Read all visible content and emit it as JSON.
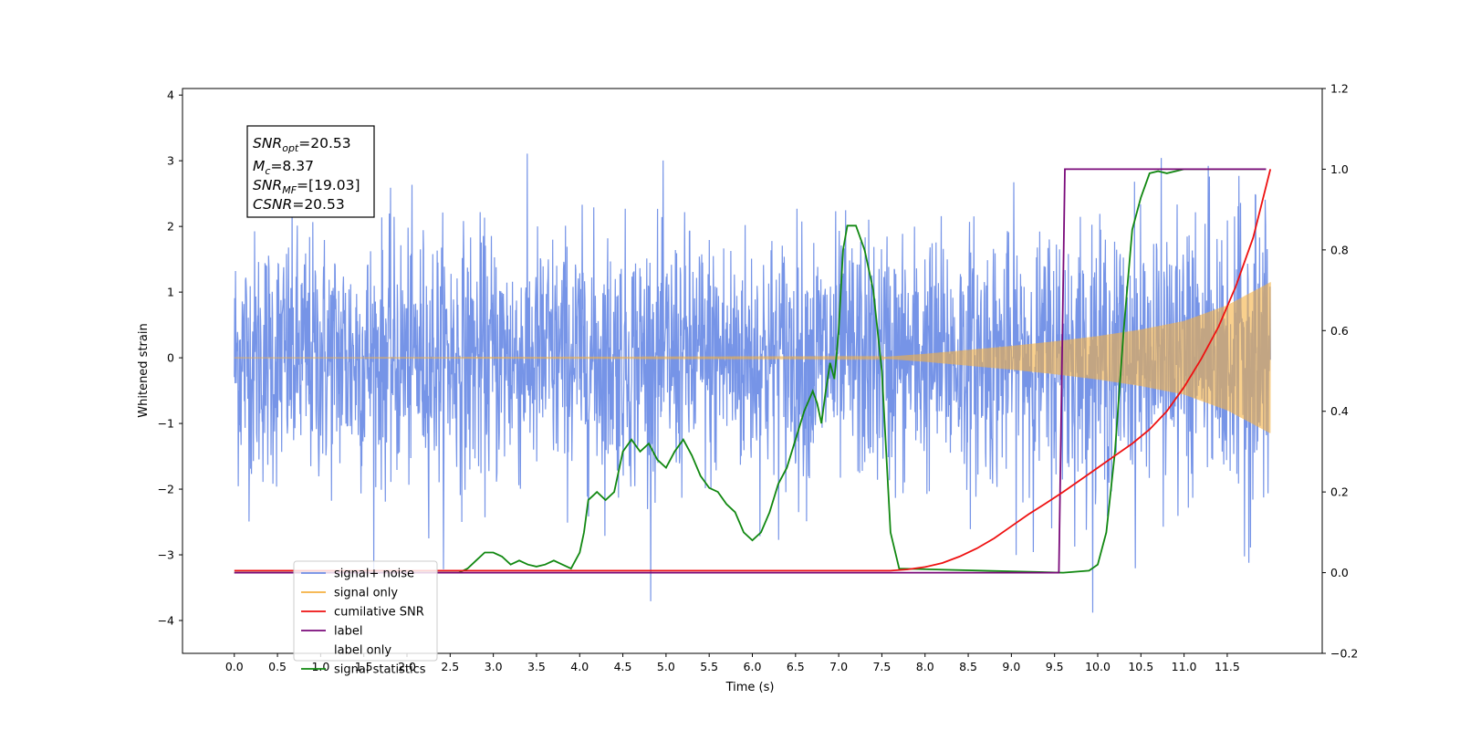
{
  "chart_data": {
    "type": "line",
    "xlabel": "Time (s)",
    "ylabel": "Whitened strain",
    "xlim": [
      -0.6,
      12.6
    ],
    "ylim": [
      -4.5,
      4.1
    ],
    "y2lim": [
      -0.2,
      1.2
    ],
    "x_ticks": [
      "0.0",
      "0.5",
      "1.0",
      "1.5",
      "2.0",
      "2.5",
      "3.0",
      "3.5",
      "4.0",
      "4.5",
      "5.0",
      "5.5",
      "6.0",
      "6.5",
      "7.0",
      "7.5",
      "8.0",
      "8.5",
      "9.0",
      "9.5",
      "10.0",
      "10.5",
      "11.0",
      "11.5"
    ],
    "y_ticks": [
      "4",
      "3",
      "2",
      "1",
      "0",
      "−1",
      "−2",
      "−3",
      "−4"
    ],
    "y2_ticks": [
      "1.2",
      "1.0",
      "0.8",
      "0.6",
      "0.4",
      "0.2",
      "0.0",
      "−0.2"
    ],
    "annotation": {
      "snr_opt": {
        "sym": "SNR",
        "sub": "opt",
        "value": "=20.53"
      },
      "mc": {
        "sym": "M",
        "sub": "c",
        "value": "=8.37"
      },
      "snr_mf": {
        "sym": "SNR",
        "sub": "MF",
        "value": "=[19.03]"
      },
      "csnr": {
        "sym": "CSNR",
        "sub": "",
        "value": "=20.53"
      }
    },
    "series": [
      {
        "name": "signal+ noise",
        "color": "#6f8ee6",
        "axis": "left",
        "description_values": {
          "x_range": [
            0.0,
            12.0
          ],
          "envelope_abs_max": 3.7
        }
      },
      {
        "name": "signal only",
        "color": "#f5b041",
        "axis": "left",
        "envelope": [
          [
            0.0,
            0.0
          ],
          [
            7.5,
            0.01
          ],
          [
            8.0,
            0.06
          ],
          [
            8.5,
            0.12
          ],
          [
            9.0,
            0.18
          ],
          [
            9.5,
            0.25
          ],
          [
            10.0,
            0.33
          ],
          [
            10.5,
            0.43
          ],
          [
            11.0,
            0.56
          ],
          [
            11.5,
            0.8
          ],
          [
            12.0,
            1.15
          ]
        ]
      },
      {
        "name": "cumilative SNR",
        "color": "#ee1111",
        "axis": "right",
        "x": [
          0.0,
          7.6,
          7.8,
          8.0,
          8.2,
          8.4,
          8.6,
          8.8,
          9.0,
          9.2,
          9.4,
          9.6,
          9.8,
          10.0,
          10.2,
          10.4,
          10.6,
          10.8,
          11.0,
          11.2,
          11.4,
          11.6,
          11.8,
          12.0
        ],
        "y": [
          0.005,
          0.005,
          0.008,
          0.014,
          0.024,
          0.04,
          0.06,
          0.085,
          0.115,
          0.145,
          0.172,
          0.2,
          0.23,
          0.26,
          0.29,
          0.32,
          0.355,
          0.4,
          0.46,
          0.53,
          0.61,
          0.71,
          0.83,
          1.0
        ]
      },
      {
        "name": "label",
        "color": "#7a0a7a",
        "axis": "right",
        "x": [
          0.0,
          9.55,
          9.62,
          11.95
        ],
        "y": [
          0.0,
          0.0,
          1.0,
          1.0
        ]
      },
      {
        "name": "label only",
        "color": "#999999",
        "axis": "right",
        "hidden": true
      },
      {
        "name": "signal statistics",
        "color": "#118811",
        "axis": "right",
        "x": [
          0.0,
          2.6,
          2.7,
          2.8,
          2.9,
          3.0,
          3.1,
          3.2,
          3.3,
          3.4,
          3.5,
          3.6,
          3.7,
          3.8,
          3.9,
          4.0,
          4.05,
          4.1,
          4.15,
          4.2,
          4.3,
          4.4,
          4.5,
          4.6,
          4.7,
          4.8,
          4.9,
          5.0,
          5.1,
          5.2,
          5.3,
          5.4,
          5.5,
          5.6,
          5.7,
          5.8,
          5.9,
          6.0,
          6.1,
          6.2,
          6.3,
          6.4,
          6.5,
          6.6,
          6.7,
          6.75,
          6.8,
          6.85,
          6.9,
          6.95,
          7.0,
          7.05,
          7.1,
          7.2,
          7.3,
          7.4,
          7.5,
          7.6,
          7.7,
          9.6,
          9.9,
          10.0,
          10.1,
          10.2,
          10.3,
          10.4,
          10.5,
          10.6,
          10.7,
          10.8,
          11.0,
          11.95
        ],
        "y": [
          0.0,
          0.0,
          0.01,
          0.03,
          0.05,
          0.05,
          0.04,
          0.02,
          0.03,
          0.02,
          0.015,
          0.02,
          0.03,
          0.02,
          0.01,
          0.05,
          0.1,
          0.18,
          0.19,
          0.2,
          0.18,
          0.2,
          0.3,
          0.33,
          0.3,
          0.32,
          0.28,
          0.26,
          0.3,
          0.33,
          0.29,
          0.24,
          0.21,
          0.2,
          0.17,
          0.15,
          0.1,
          0.08,
          0.1,
          0.15,
          0.22,
          0.26,
          0.33,
          0.4,
          0.45,
          0.42,
          0.37,
          0.45,
          0.52,
          0.48,
          0.6,
          0.8,
          0.86,
          0.86,
          0.8,
          0.7,
          0.5,
          0.1,
          0.01,
          0.0,
          0.005,
          0.02,
          0.1,
          0.3,
          0.6,
          0.85,
          0.93,
          0.99,
          0.995,
          0.99,
          1.0,
          1.0
        ]
      }
    ],
    "legend": {
      "placement": "lower-left",
      "entries": [
        "signal+ noise",
        "signal only",
        "cumilative SNR",
        "label",
        "label only",
        "signal statistics"
      ]
    },
    "grid": false
  }
}
